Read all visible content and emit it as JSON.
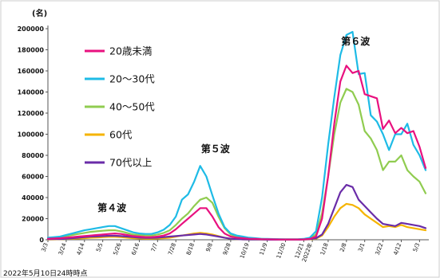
{
  "chart_data": {
    "type": "line",
    "unit_label": "(名)",
    "footnote": "2022年5月10日24時時点",
    "ylim": [
      0,
      200000
    ],
    "yticks": [
      0,
      20000,
      40000,
      60000,
      80000,
      100000,
      120000,
      140000,
      160000,
      180000,
      200000
    ],
    "grid": false,
    "legend_position": "top-left",
    "x_ticks": [
      {
        "label": "3/3",
        "i": 0
      },
      {
        "label": "3/24",
        "i": 3
      },
      {
        "label": "4/14",
        "i": 6
      },
      {
        "label": "5/5",
        "i": 9
      },
      {
        "label": "5/26",
        "i": 12
      },
      {
        "label": "6/16",
        "i": 15
      },
      {
        "label": "7/7",
        "i": 18
      },
      {
        "label": "7/28",
        "i": 21
      },
      {
        "label": "8/18",
        "i": 24
      },
      {
        "label": "9/8",
        "i": 27
      },
      {
        "label": "9/28",
        "i": 30
      },
      {
        "label": "10/19",
        "i": 33
      },
      {
        "label": "11/9",
        "i": 36
      },
      {
        "label": "11/30",
        "i": 39
      },
      {
        "label": "12/21",
        "i": 42
      },
      {
        "label": "2022年",
        "i": 43.4
      },
      {
        "label": "1/18",
        "i": 46
      },
      {
        "label": "2/8",
        "i": 49
      },
      {
        "label": "3/1",
        "i": 52
      },
      {
        "label": "3/22",
        "i": 55
      },
      {
        "label": "4/12",
        "i": 58
      },
      {
        "label": "5/3",
        "i": 61
      }
    ],
    "series": [
      {
        "name": "20歳未満",
        "color": "#e8117f",
        "values": [
          1000,
          1200,
          1500,
          2000,
          2500,
          3000,
          3500,
          4000,
          4500,
          5000,
          5500,
          6000,
          5500,
          4500,
          3500,
          3000,
          2500,
          2500,
          3000,
          4000,
          6000,
          10000,
          15000,
          20000,
          25000,
          30000,
          30000,
          22000,
          12000,
          6000,
          3000,
          2000,
          1500,
          1000,
          800,
          600,
          500,
          400,
          300,
          300,
          300,
          300,
          400,
          800,
          3000,
          20000,
          60000,
          110000,
          150000,
          165000,
          158000,
          160000,
          138000,
          136000,
          134000,
          105000,
          113000,
          101000,
          106000,
          101000,
          103000,
          88000,
          68000
        ]
      },
      {
        "name": "20～30代",
        "color": "#1ebbe6",
        "values": [
          2000,
          2500,
          3000,
          4500,
          6000,
          7500,
          9000,
          10000,
          11000,
          12000,
          13000,
          13000,
          11000,
          9000,
          7000,
          6000,
          5500,
          5500,
          7000,
          9500,
          14000,
          22000,
          38000,
          43000,
          55000,
          70000,
          60000,
          42000,
          25000,
          12000,
          6000,
          4000,
          3000,
          2000,
          1500,
          1000,
          800,
          700,
          600,
          500,
          500,
          500,
          800,
          2000,
          8000,
          40000,
          90000,
          135000,
          175000,
          194000,
          197000,
          157000,
          158000,
          118000,
          112000,
          100000,
          85000,
          100000,
          100000,
          110000,
          90000,
          80000,
          66000
        ]
      },
      {
        "name": "40～50代",
        "color": "#90cc50",
        "values": [
          1500,
          1800,
          2500,
          3500,
          4500,
          5500,
          6500,
          7500,
          8000,
          8500,
          9000,
          9000,
          8000,
          6500,
          5000,
          4500,
          4000,
          4000,
          5000,
          6500,
          9000,
          14000,
          20000,
          25000,
          32000,
          38000,
          40000,
          35000,
          22000,
          11000,
          5000,
          3000,
          2000,
          1500,
          1000,
          800,
          600,
          500,
          400,
          400,
          400,
          400,
          600,
          1500,
          5000,
          25000,
          60000,
          100000,
          130000,
          143000,
          140000,
          128000,
          103000,
          96000,
          85000,
          66000,
          74000,
          74000,
          80000,
          66000,
          60000,
          55000,
          44000
        ]
      },
      {
        "name": "60代",
        "color": "#f5b400",
        "values": [
          300,
          400,
          500,
          800,
          1000,
          1200,
          1500,
          2000,
          2200,
          2500,
          2800,
          2800,
          2500,
          2000,
          1500,
          1200,
          1000,
          1000,
          1200,
          1500,
          2000,
          3000,
          4000,
          5000,
          6000,
          6500,
          6000,
          5000,
          3500,
          2000,
          1000,
          600,
          400,
          300,
          200,
          200,
          100,
          100,
          100,
          100,
          100,
          100,
          200,
          400,
          1000,
          4000,
          12000,
          22000,
          30000,
          34000,
          33000,
          30000,
          24000,
          20000,
          16000,
          12000,
          13000,
          12000,
          14000,
          12000,
          11000,
          10000,
          9000
        ]
      },
      {
        "name": "70代以上",
        "color": "#6a2ca8",
        "values": [
          500,
          600,
          700,
          1000,
          1500,
          2000,
          2500,
          3000,
          3200,
          3500,
          3800,
          3800,
          3500,
          3000,
          2500,
          2000,
          1800,
          1800,
          2000,
          2500,
          3000,
          3500,
          4000,
          4500,
          5000,
          5500,
          5000,
          4000,
          3000,
          2000,
          1000,
          600,
          400,
          300,
          200,
          200,
          100,
          100,
          100,
          100,
          100,
          100,
          200,
          500,
          1500,
          5000,
          15000,
          30000,
          45000,
          52000,
          50000,
          38000,
          32000,
          26000,
          20000,
          15000,
          14000,
          13000,
          16000,
          15000,
          14000,
          13000,
          11000
        ]
      }
    ],
    "annotations": [
      {
        "text": "第４波",
        "i": 10.5,
        "y": 27000
      },
      {
        "text": "第５波",
        "i": 27.5,
        "y": 83000
      },
      {
        "text": "第６波",
        "i": 50.5,
        "y": 185000
      }
    ]
  }
}
